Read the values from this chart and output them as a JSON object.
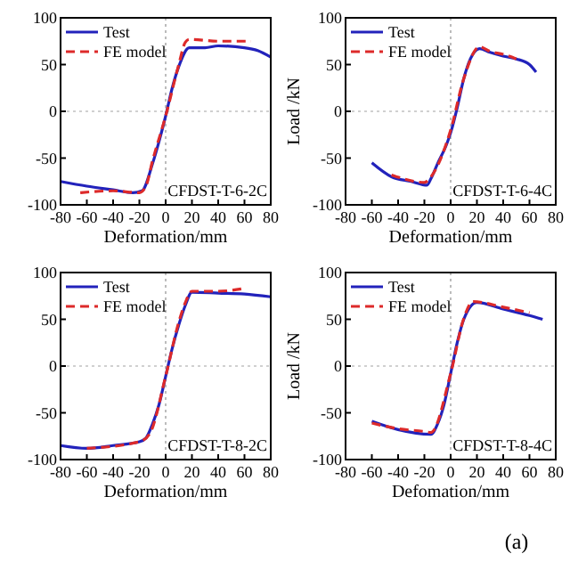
{
  "chart_data": [
    {
      "type": "line",
      "xlabel": "Deformation/mm",
      "xlim": [
        -80,
        80
      ],
      "xticks": [
        -80,
        -60,
        -40,
        -20,
        0,
        20,
        40,
        60,
        80
      ],
      "ylim": [
        -100,
        100
      ],
      "yticks": [
        -100,
        -50,
        0,
        50,
        100
      ],
      "legend": "top left",
      "line_style": "solid",
      "ref_lines": [
        {
          "axis": "x",
          "value": 0,
          "color": "#bcbcbc",
          "line_style": "dotted"
        },
        {
          "axis": "y",
          "value": 0,
          "color": "#d0d0d0",
          "line_style": "dotted"
        }
      ],
      "annotations": [
        "CFDST-T-6-2C"
      ],
      "series": [
        {
          "name": "Test",
          "color": "#2222bb",
          "x": [
            -80,
            -60,
            -40,
            -25,
            -18,
            -10,
            -5,
            0,
            5,
            10,
            18,
            30,
            40,
            60,
            70,
            80
          ],
          "values": [
            -75,
            -80,
            -84,
            -87,
            -85,
            -56,
            -32,
            -5,
            25,
            48,
            68,
            68,
            70,
            68,
            65,
            58
          ]
        },
        {
          "name": "FE model",
          "color": "#dd2a2a",
          "line_style": "dashed",
          "x": [
            -65,
            -40,
            -20,
            -15,
            -10,
            0,
            10,
            15,
            18,
            40,
            65
          ],
          "values": [
            -87,
            -85,
            -87,
            -80,
            -53,
            -5,
            50,
            74,
            77,
            75,
            75
          ]
        }
      ]
    },
    {
      "type": "line",
      "xlabel": "Deformation/mm",
      "ylabel": "Load /kN",
      "xlim": [
        -80,
        80
      ],
      "xticks": [
        -80,
        -60,
        -40,
        -20,
        0,
        20,
        40,
        60,
        80
      ],
      "ylim": [
        -100,
        100
      ],
      "yticks": [
        -100,
        -50,
        0,
        50,
        100
      ],
      "legend": "top left",
      "line_style": "solid",
      "ref_lines": [
        {
          "axis": "x",
          "value": 0,
          "color": "#bcbcbc",
          "line_style": "dotted"
        },
        {
          "axis": "y",
          "value": 0,
          "color": "#d0d0d0",
          "line_style": "dotted"
        }
      ],
      "annotations": [
        "CFDST-T-6-4C"
      ],
      "series": [
        {
          "name": "Test",
          "color": "#2222bb",
          "x": [
            -60,
            -45,
            -30,
            -18,
            -15,
            -10,
            -3,
            0,
            5,
            10,
            15,
            22,
            30,
            40,
            50,
            60,
            65
          ],
          "values": [
            -55,
            -70,
            -75,
            -79,
            -72,
            -56,
            -35,
            -23,
            4,
            35,
            56,
            67,
            63,
            59,
            56,
            50,
            42
          ]
        },
        {
          "name": "FE model",
          "color": "#dd2a2a",
          "line_style": "dashed",
          "x": [
            -45,
            -20,
            -15,
            0,
            10,
            22,
            30,
            40,
            50
          ],
          "values": [
            -68,
            -76,
            -70,
            -20,
            35,
            69,
            64,
            61,
            56
          ]
        }
      ]
    },
    {
      "type": "line",
      "xlabel": "Deformation/mm",
      "xlim": [
        -80,
        80
      ],
      "xticks": [
        -80,
        -60,
        -40,
        -20,
        0,
        20,
        40,
        60,
        80
      ],
      "ylim": [
        -100,
        100
      ],
      "yticks": [
        -100,
        -50,
        0,
        50,
        100
      ],
      "legend": "top left",
      "line_style": "solid",
      "ref_lines": [
        {
          "axis": "x",
          "value": 0,
          "color": "#bcbcbc",
          "line_style": "dotted"
        },
        {
          "axis": "y",
          "value": 0,
          "color": "#d0d0d0",
          "line_style": "dotted"
        }
      ],
      "annotations": [
        "CFDST-T-8-2C"
      ],
      "series": [
        {
          "name": "Test",
          "color": "#2222bb",
          "x": [
            -80,
            -60,
            -40,
            -20,
            -15,
            -10,
            -5,
            0,
            5,
            10,
            15,
            20,
            40,
            60,
            80
          ],
          "values": [
            -85,
            -88,
            -85,
            -81,
            -77,
            -62,
            -41,
            -11,
            19,
            44,
            65,
            79,
            78,
            77,
            74
          ]
        },
        {
          "name": "FE model",
          "color": "#dd2a2a",
          "line_style": "dashed",
          "x": [
            -60,
            -20,
            -12,
            0,
            10,
            15,
            20,
            40,
            60
          ],
          "values": [
            -88,
            -81,
            -72,
            -11,
            47,
            68,
            80,
            80,
            83
          ]
        }
      ]
    },
    {
      "type": "line",
      "xlabel": "Defomation/mm",
      "ylabel": "Load /kN",
      "xlim": [
        -80,
        80
      ],
      "xticks": [
        -80,
        -60,
        -40,
        -20,
        0,
        20,
        40,
        60,
        80
      ],
      "ylim": [
        -100,
        100
      ],
      "yticks": [
        -100,
        -50,
        0,
        50,
        100
      ],
      "legend": "top left",
      "line_style": "solid",
      "ref_lines": [
        {
          "axis": "x",
          "value": 0,
          "color": "#bcbcbc",
          "line_style": "dotted"
        },
        {
          "axis": "y",
          "value": 0,
          "color": "#d0d0d0",
          "line_style": "dotted"
        }
      ],
      "annotations": [
        "CFDST-T-8-4C",
        "(a)"
      ],
      "series": [
        {
          "name": "Test",
          "color": "#2222bb",
          "x": [
            -60,
            -40,
            -15,
            -10,
            -5,
            0,
            5,
            10,
            20,
            40,
            60,
            70
          ],
          "values": [
            -59,
            -68,
            -73,
            -62,
            -41,
            -8,
            25,
            50,
            68,
            61,
            54,
            50
          ]
        },
        {
          "name": "FE model",
          "color": "#dd2a2a",
          "line_style": "dashed",
          "x": [
            -60,
            -40,
            -20,
            -15,
            0,
            10,
            17,
            40,
            60
          ],
          "values": [
            -61,
            -67,
            -70,
            -71,
            -8,
            51,
            69,
            63,
            57
          ]
        }
      ]
    }
  ]
}
